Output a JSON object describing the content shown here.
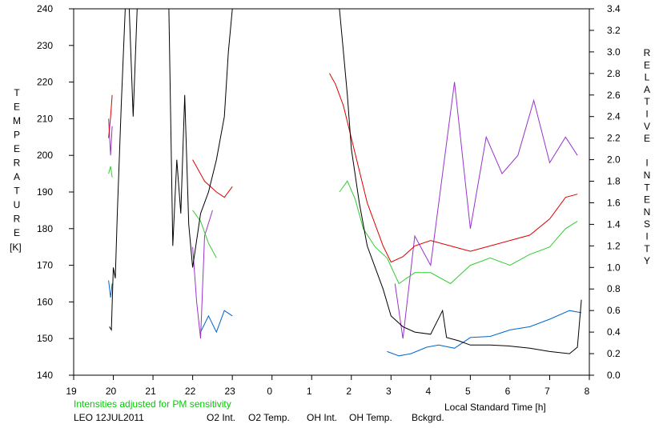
{
  "chart_data": {
    "type": "line",
    "title": "",
    "xlabel": "Local Standard Time [h]",
    "ylabel_left": "TEMPERATURE [K]",
    "ylabel_left_chars": [
      "T",
      "E",
      "M",
      "P",
      "E",
      "R",
      "A",
      "T",
      "U",
      "R",
      "E"
    ],
    "ylabel_left_unit": "[K]",
    "ylabel_right": "RELATIVE INTENSITY",
    "ylabel_right_chars": [
      "R",
      "E",
      "L",
      "A",
      "T",
      "I",
      "V",
      "E",
      "",
      "I",
      "N",
      "T",
      "E",
      "N",
      "S",
      "I",
      "T",
      "Y"
    ],
    "x_ticks": [
      "19",
      "20",
      "21",
      "22",
      "23",
      "0",
      "1",
      "2",
      "3",
      "4",
      "5",
      "6",
      "7",
      "8"
    ],
    "x_range": [
      19,
      32
    ],
    "y_left_range": [
      140,
      240
    ],
    "y_left_ticks": [
      "140",
      "150",
      "160",
      "170",
      "180",
      "190",
      "200",
      "210",
      "220",
      "230",
      "240"
    ],
    "y_right_range": [
      0.0,
      3.4
    ],
    "y_right_ticks": [
      "0.0",
      "0.2",
      "0.4",
      "0.6",
      "0.8",
      "1.0",
      "1.2",
      "1.4",
      "1.6",
      "1.8",
      "2.0",
      "2.2",
      "2.4",
      "2.6",
      "2.8",
      "3.0",
      "3.2",
      "3.4"
    ],
    "note": "Intensities adjusted for PM sensitivity",
    "site_date": "LEO 12JUL2011",
    "grid": false,
    "legend_position": "bottom",
    "series": [
      {
        "name": "O2 Int.",
        "axis": "right",
        "color": "#0066cc",
        "segments": [
          [
            [
              19.88,
              0.88
            ],
            [
              19.93,
              0.72
            ],
            [
              19.97,
              0.85
            ]
          ],
          [
            [
              22.2,
              0.4
            ],
            [
              22.4,
              0.55
            ],
            [
              22.6,
              0.4
            ],
            [
              22.8,
              0.6
            ],
            [
              23.0,
              0.55
            ]
          ],
          [
            [
              26.9,
              0.22
            ],
            [
              27.2,
              0.18
            ],
            [
              27.5,
              0.2
            ],
            [
              27.9,
              0.26
            ],
            [
              28.2,
              0.28
            ],
            [
              28.6,
              0.25
            ],
            [
              29.0,
              0.35
            ],
            [
              29.5,
              0.36
            ],
            [
              30.0,
              0.42
            ],
            [
              30.5,
              0.45
            ],
            [
              31.0,
              0.52
            ],
            [
              31.5,
              0.6
            ],
            [
              31.8,
              0.58
            ]
          ]
        ]
      },
      {
        "name": "O2 Temp.",
        "axis": "left",
        "color": "#9933cc",
        "segments": [
          [
            [
              19.88,
              210
            ],
            [
              19.93,
              200
            ],
            [
              19.97,
              208
            ]
          ],
          [
            [
              22.0,
              175
            ],
            [
              22.1,
              160
            ],
            [
              22.2,
              150
            ],
            [
              22.3,
              178
            ],
            [
              22.5,
              185
            ]
          ],
          [
            [
              27.1,
              165
            ],
            [
              27.3,
              150
            ],
            [
              27.6,
              178
            ],
            [
              28.0,
              170
            ],
            [
              28.3,
              195
            ],
            [
              28.6,
              220
            ],
            [
              29.0,
              180
            ],
            [
              29.4,
              205
            ],
            [
              29.8,
              195
            ],
            [
              30.2,
              200
            ],
            [
              30.6,
              215
            ],
            [
              31.0,
              198
            ],
            [
              31.4,
              205
            ],
            [
              31.7,
              200
            ]
          ]
        ]
      },
      {
        "name": "OH Int.",
        "axis": "right",
        "color": "#dd0000",
        "segments": [
          [
            [
              19.88,
              2.2
            ],
            [
              19.93,
              2.4
            ],
            [
              19.97,
              2.6
            ]
          ],
          [
            [
              22.0,
              2.0
            ],
            [
              22.3,
              1.8
            ],
            [
              22.6,
              1.7
            ],
            [
              22.8,
              1.65
            ],
            [
              23.0,
              1.75
            ]
          ],
          [
            [
              25.45,
              2.8
            ],
            [
              25.6,
              2.7
            ],
            [
              25.8,
              2.5
            ],
            [
              26.0,
              2.2
            ],
            [
              26.2,
              1.9
            ],
            [
              26.4,
              1.6
            ],
            [
              26.6,
              1.4
            ],
            [
              26.8,
              1.2
            ],
            [
              27.0,
              1.05
            ],
            [
              27.3,
              1.1
            ],
            [
              27.6,
              1.2
            ],
            [
              28.0,
              1.25
            ],
            [
              28.5,
              1.2
            ],
            [
              29.0,
              1.15
            ],
            [
              29.5,
              1.2
            ],
            [
              30.0,
              1.25
            ],
            [
              30.5,
              1.3
            ],
            [
              31.0,
              1.45
            ],
            [
              31.4,
              1.65
            ],
            [
              31.7,
              1.68
            ]
          ]
        ]
      },
      {
        "name": "OH Temp.",
        "axis": "left",
        "color": "#33cc33",
        "segments": [
          [
            [
              19.88,
              195
            ],
            [
              19.93,
              197
            ],
            [
              19.97,
              194
            ]
          ],
          [
            [
              22.0,
              185
            ],
            [
              22.2,
              182
            ],
            [
              22.4,
              176
            ],
            [
              22.6,
              172
            ]
          ],
          [
            [
              25.7,
              190
            ],
            [
              25.9,
              193
            ],
            [
              26.1,
              188
            ],
            [
              26.3,
              180
            ],
            [
              26.6,
              175
            ],
            [
              26.9,
              172
            ],
            [
              27.2,
              165
            ],
            [
              27.6,
              168
            ],
            [
              28.0,
              168
            ],
            [
              28.5,
              165
            ],
            [
              29.0,
              170
            ],
            [
              29.5,
              172
            ],
            [
              30.0,
              170
            ],
            [
              30.5,
              173
            ],
            [
              31.0,
              175
            ],
            [
              31.4,
              180
            ],
            [
              31.7,
              182
            ]
          ]
        ]
      },
      {
        "name": "Bckgrd.",
        "axis": "right",
        "color": "#000000",
        "segments": [
          [
            [
              19.9,
              0.45
            ],
            [
              19.95,
              0.42
            ],
            [
              20.0,
              1.0
            ],
            [
              20.05,
              0.9
            ],
            [
              20.1,
              1.5
            ],
            [
              20.2,
              2.5
            ],
            [
              20.3,
              3.4
            ]
          ],
          [
            [
              20.4,
              3.4
            ],
            [
              20.5,
              2.4
            ],
            [
              20.6,
              3.4
            ]
          ],
          [
            [
              21.4,
              3.4
            ],
            [
              21.5,
              1.2
            ],
            [
              21.6,
              2.0
            ],
            [
              21.7,
              1.5
            ],
            [
              21.8,
              2.6
            ],
            [
              21.9,
              1.4
            ],
            [
              22.0,
              1.0
            ],
            [
              22.2,
              1.5
            ],
            [
              22.4,
              1.7
            ],
            [
              22.6,
              2.0
            ],
            [
              22.8,
              2.4
            ],
            [
              22.9,
              3.0
            ],
            [
              23.0,
              3.4
            ]
          ],
          [
            [
              25.7,
              3.4
            ],
            [
              25.8,
              3.0
            ],
            [
              25.9,
              2.6
            ],
            [
              26.0,
              2.1
            ],
            [
              26.2,
              1.6
            ],
            [
              26.4,
              1.2
            ],
            [
              26.6,
              1.0
            ],
            [
              26.8,
              0.8
            ],
            [
              27.0,
              0.55
            ],
            [
              27.3,
              0.45
            ],
            [
              27.6,
              0.4
            ],
            [
              28.0,
              0.38
            ],
            [
              28.3,
              0.6
            ],
            [
              28.4,
              0.35
            ],
            [
              28.7,
              0.32
            ],
            [
              29.0,
              0.28
            ],
            [
              29.5,
              0.28
            ],
            [
              30.0,
              0.27
            ],
            [
              30.5,
              0.25
            ],
            [
              31.0,
              0.22
            ],
            [
              31.5,
              0.2
            ],
            [
              31.7,
              0.26
            ],
            [
              31.8,
              0.7
            ]
          ]
        ]
      }
    ]
  }
}
